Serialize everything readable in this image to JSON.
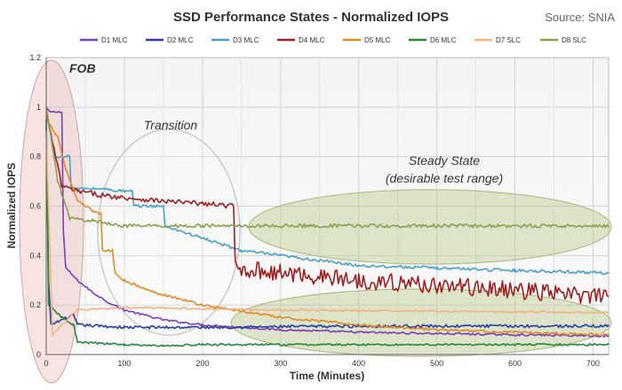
{
  "chart_data": {
    "type": "line",
    "title": "SSD Performance States - Normalized IOPS",
    "source": "Source: SNIA",
    "xlabel": "Time (Minutes)",
    "ylabel": "Normalized IOPS",
    "xlim": [
      0,
      720
    ],
    "ylim": [
      0,
      1.2
    ],
    "xticks": [
      0,
      100,
      200,
      300,
      400,
      500,
      600,
      700
    ],
    "yticks": [
      0,
      0.2,
      0.4,
      0.6,
      0.8,
      1.0,
      1.2
    ],
    "grid": true,
    "legend_position": "top",
    "annotations": {
      "fob": "FOB",
      "transition": "Transition",
      "steady_line1": "Steady State",
      "steady_line2": "(desirable test range)"
    },
    "series": [
      {
        "name": "D1 MLC",
        "color": "#7b3fb8",
        "noise": 0.004,
        "points": [
          [
            0,
            1.0
          ],
          [
            5,
            0.98
          ],
          [
            20,
            0.98
          ],
          [
            22,
            0.5
          ],
          [
            25,
            0.35
          ],
          [
            40,
            0.3
          ],
          [
            60,
            0.25
          ],
          [
            80,
            0.21
          ],
          [
            100,
            0.18
          ],
          [
            150,
            0.14
          ],
          [
            200,
            0.12
          ],
          [
            300,
            0.1
          ],
          [
            400,
            0.09
          ],
          [
            500,
            0.085
          ],
          [
            600,
            0.08
          ],
          [
            720,
            0.075
          ]
        ]
      },
      {
        "name": "D2 MLC",
        "color": "#2b3f9e",
        "noise": 0.006,
        "points": [
          [
            0,
            0.95
          ],
          [
            3,
            0.3
          ],
          [
            6,
            0.12
          ],
          [
            20,
            0.14
          ],
          [
            35,
            0.16
          ],
          [
            40,
            0.12
          ],
          [
            100,
            0.11
          ],
          [
            200,
            0.11
          ],
          [
            400,
            0.115
          ],
          [
            720,
            0.115
          ]
        ]
      },
      {
        "name": "D3 MLC",
        "color": "#4aa0c8",
        "noise": 0.006,
        "points": [
          [
            0,
            1.0
          ],
          [
            10,
            0.8
          ],
          [
            30,
            0.8
          ],
          [
            32,
            0.67
          ],
          [
            70,
            0.67
          ],
          [
            100,
            0.66
          ],
          [
            110,
            0.66
          ],
          [
            112,
            0.6
          ],
          [
            150,
            0.6
          ],
          [
            152,
            0.52
          ],
          [
            200,
            0.47
          ],
          [
            250,
            0.42
          ],
          [
            300,
            0.4
          ],
          [
            350,
            0.38
          ],
          [
            400,
            0.36
          ],
          [
            500,
            0.35
          ],
          [
            600,
            0.34
          ],
          [
            720,
            0.33
          ]
        ]
      },
      {
        "name": "D4 MLC",
        "color": "#9e2020",
        "noise": 0.01,
        "points": [
          [
            0,
            0.98
          ],
          [
            20,
            0.68
          ],
          [
            40,
            0.66
          ],
          [
            80,
            0.64
          ],
          [
            150,
            0.62
          ],
          [
            200,
            0.61
          ],
          [
            240,
            0.6
          ],
          [
            242,
            0.35
          ],
          [
            300,
            0.33
          ],
          [
            400,
            0.3
          ],
          [
            500,
            0.28
          ],
          [
            600,
            0.26
          ],
          [
            720,
            0.23
          ]
        ]
      },
      {
        "name": "D5 MLC",
        "color": "#e08a2a",
        "noise": 0.005,
        "points": [
          [
            0,
            0.95
          ],
          [
            15,
            0.88
          ],
          [
            25,
            0.75
          ],
          [
            40,
            0.62
          ],
          [
            60,
            0.58
          ],
          [
            70,
            0.57
          ],
          [
            72,
            0.42
          ],
          [
            85,
            0.42
          ],
          [
            88,
            0.33
          ],
          [
            100,
            0.3
          ],
          [
            130,
            0.26
          ],
          [
            200,
            0.2
          ],
          [
            300,
            0.15
          ],
          [
            400,
            0.12
          ],
          [
            500,
            0.1
          ],
          [
            600,
            0.09
          ],
          [
            720,
            0.08
          ]
        ]
      },
      {
        "name": "D6 MLC",
        "color": "#2a8a3a",
        "noise": 0.004,
        "points": [
          [
            0,
            0.95
          ],
          [
            3,
            0.2
          ],
          [
            20,
            0.15
          ],
          [
            35,
            0.12
          ],
          [
            40,
            0.05
          ],
          [
            100,
            0.04
          ],
          [
            150,
            0.035
          ],
          [
            200,
            0.04
          ],
          [
            400,
            0.04
          ],
          [
            720,
            0.04
          ]
        ]
      },
      {
        "name": "D7 SLC",
        "color": "#f2b37e",
        "noise": 0.004,
        "points": [
          [
            0,
            0.9
          ],
          [
            8,
            0.08
          ],
          [
            20,
            0.12
          ],
          [
            40,
            0.18
          ],
          [
            100,
            0.19
          ],
          [
            300,
            0.18
          ],
          [
            500,
            0.175
          ],
          [
            720,
            0.17
          ]
        ]
      },
      {
        "name": "D8 SLC",
        "color": "#8aa04a",
        "noise": 0.007,
        "points": [
          [
            0,
            1.0
          ],
          [
            15,
            0.7
          ],
          [
            30,
            0.55
          ],
          [
            60,
            0.54
          ],
          [
            100,
            0.52
          ],
          [
            200,
            0.52
          ],
          [
            400,
            0.52
          ],
          [
            720,
            0.52
          ]
        ]
      }
    ]
  }
}
